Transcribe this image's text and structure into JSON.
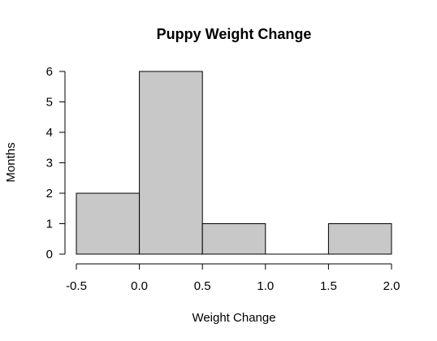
{
  "chart_data": {
    "type": "bar",
    "subtype": "histogram",
    "title": "Puppy Weight Change",
    "xlabel": "Weight Change",
    "ylabel": "Months",
    "bins": [
      {
        "start": -0.5,
        "end": 0.0,
        "count": 2
      },
      {
        "start": 0.0,
        "end": 0.5,
        "count": 6
      },
      {
        "start": 0.5,
        "end": 1.0,
        "count": 1
      },
      {
        "start": 1.0,
        "end": 1.5,
        "count": 0
      },
      {
        "start": 1.5,
        "end": 2.0,
        "count": 1
      }
    ],
    "xlim": [
      -0.5,
      2.0
    ],
    "ylim": [
      0,
      6
    ],
    "x_ticks": [
      "-0.5",
      "0.0",
      "0.5",
      "1.0",
      "1.5",
      "2.0"
    ],
    "y_ticks": [
      "0",
      "1",
      "2",
      "3",
      "4",
      "5",
      "6"
    ],
    "bar_color": "#c8c8c8",
    "grid": false,
    "legend": "none"
  }
}
